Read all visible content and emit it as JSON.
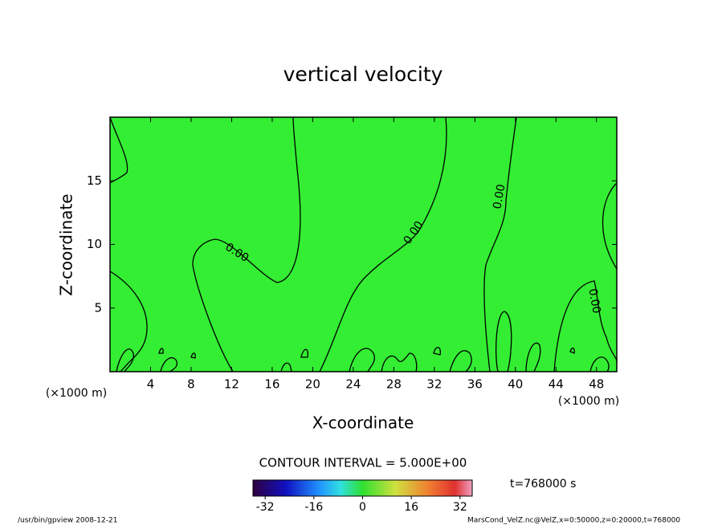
{
  "chart_data": {
    "type": "contour",
    "title": "vertical velocity",
    "x_label": "X-coordinate",
    "y_label": "Z-coordinate",
    "x_unit_left": "(×1000 m)",
    "x_unit_right": "(×1000 m)",
    "xlim": [
      0,
      50
    ],
    "xticks": [
      4,
      8,
      12,
      16,
      20,
      24,
      28,
      32,
      36,
      40,
      44,
      48
    ],
    "ylim": [
      0,
      20
    ],
    "yticks": [
      5,
      10,
      15
    ],
    "fill_color": "#33ee33",
    "contour_labels": [
      "0.00",
      "0.00",
      "0.00",
      "0.00"
    ],
    "contour_interval": "CONTOUR INTERVAL = 5.000E+00",
    "time": "t=768000 s",
    "colorbar_lim": [
      -36,
      36
    ],
    "colorbar_ticks": [
      -32,
      -16,
      0,
      16,
      32
    ],
    "footer_left": "/usr/bin/gpview  2008-12-21",
    "footer_right": "MarsCond_VelZ.nc@VelZ,x=0:50000,z=0:20000,t=768000"
  }
}
